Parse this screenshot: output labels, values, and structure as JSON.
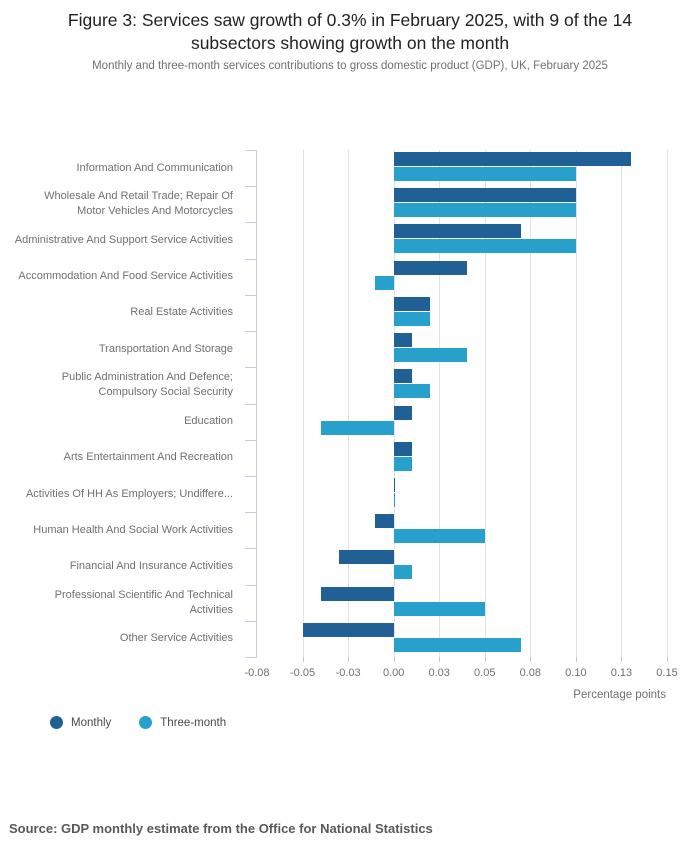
{
  "chart_data": {
    "type": "bar",
    "orientation": "horizontal",
    "title": "Figure 3: Services saw growth of 0.3% in February 2025, with 9 of the 14 subsectors showing growth on the month",
    "subtitle": "Monthly and three-month services contributions to gross domestic product (GDP), UK, February 2025",
    "source": "Source: GDP monthly estimate from the Office for National Statistics",
    "xlabel": "Percentage points",
    "categories": [
      "Information And Communication",
      "Wholesale And Retail Trade; Repair Of Motor Vehicles And Motorcycles",
      "Administrative And Support Service Activities",
      "Accommodation And Food Service Activities",
      "Real Estate Activities",
      "Transportation And Storage",
      "Public Administration And Defence; Compulsory Social Security",
      "Education",
      "Arts Entertainment And Recreation",
      "Activities Of HH As Employers; Undiffere...",
      "Human Health And Social Work Activities",
      "Financial And Insurance Activities",
      "Professional Scientific And Technical Activities",
      "Other Service Activities"
    ],
    "series": [
      {
        "name": "Monthly",
        "color": "#206095",
        "values": [
          0.13,
          0.1,
          0.07,
          0.04,
          0.02,
          0.01,
          0.01,
          0.01,
          0.01,
          0.0,
          -0.01,
          -0.03,
          -0.04,
          -0.05
        ]
      },
      {
        "name": "Three-month",
        "color": "#27A0CC",
        "values": [
          0.1,
          0.1,
          0.1,
          -0.01,
          0.02,
          0.04,
          0.02,
          -0.04,
          0.01,
          0.0,
          0.05,
          0.01,
          0.05,
          0.07
        ]
      }
    ],
    "xlim": [
      -0.075,
      0.15
    ],
    "xticks": [
      -0.075,
      -0.05,
      -0.025,
      0,
      0.025,
      0.05,
      0.075,
      0.1,
      0.125,
      0.15
    ],
    "xtick_labels": [
      "-0.08",
      "-0.05",
      "-0.03",
      "0.00",
      "0.03",
      "0.05",
      "0.08",
      "0.10",
      "0.13",
      "0.15"
    ],
    "grid": true,
    "legend_position": "bottom-left"
  }
}
